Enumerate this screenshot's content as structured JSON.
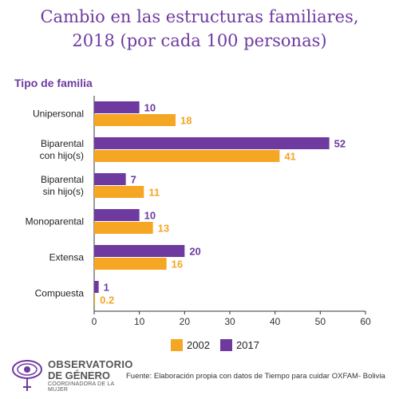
{
  "chart_data": {
    "type": "bar",
    "orientation": "horizontal",
    "title": "Cambio en las estructuras familiares, 2018 (por cada 100 personas)",
    "subtitle": "Tipo de familia",
    "categories": [
      "Unipersonal",
      "Biparental con hijo(s)",
      "Biparental sin hijo(s)",
      "Monoparental",
      "Extensa",
      "Compuesta"
    ],
    "series": [
      {
        "name": "2017",
        "color": "#6e3aa0",
        "values": [
          10,
          52,
          7,
          10,
          20,
          1
        ],
        "labels": [
          "10",
          "52",
          "7",
          "10",
          "20",
          "1"
        ]
      },
      {
        "name": "2002",
        "color": "#f5a623",
        "values": [
          18,
          41,
          11,
          13,
          16,
          0.2
        ],
        "labels": [
          "18",
          "41",
          "11",
          "13",
          "16",
          "0.2"
        ]
      }
    ],
    "xlim": [
      0,
      60
    ],
    "xticks": [
      0,
      10,
      20,
      30,
      40,
      50,
      60
    ],
    "legend": [
      {
        "name": "2002",
        "color": "#f5a623"
      },
      {
        "name": "2017",
        "color": "#6e3aa0"
      }
    ],
    "legend_position": "bottom"
  },
  "header": {
    "title_line1": "Cambio en las estructuras familiares,",
    "title_line2": "2018 (por cada 100 personas)",
    "subtitle": "Tipo de familia"
  },
  "category_lines": [
    [
      "Unipersonal"
    ],
    [
      "Biparental",
      "con hijo(s)"
    ],
    [
      "Biparental",
      "sin hijo(s)"
    ],
    [
      "Monoparental"
    ],
    [
      "Extensa"
    ],
    [
      "Compuesta"
    ]
  ],
  "footer": {
    "logo_line1": "OBSERVATORIO",
    "logo_line2": "DE GÉNERO",
    "logo_line3": "COORDINADORA DE LA MUJER",
    "logo_icon": "eye-venus-icon",
    "source": "Fuente: Elaboración propia con datos de Tiempo para cuidar OXFAM- Bolivia"
  },
  "colors": {
    "purple": "#6e3aa0",
    "orange": "#f5a623"
  }
}
